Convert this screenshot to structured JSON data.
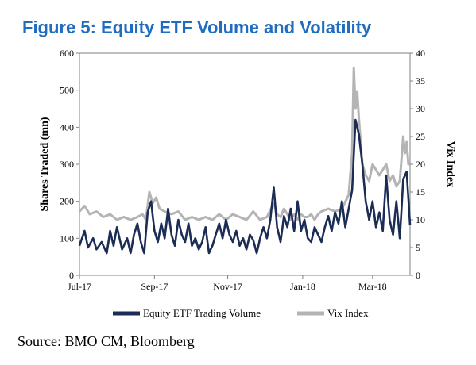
{
  "title": "Figure 5: Equity ETF Volume and Volatility",
  "source": "Source: BMO CM, Bloomberg",
  "chart_data": {
    "type": "line",
    "ylabel_left": "Shares Traded (mn)",
    "ylabel_right": "Vix Index",
    "ylim_left": [
      0,
      600
    ],
    "ylim_right": [
      0,
      40
    ],
    "yticks_left": [
      "0",
      "100",
      "200",
      "300",
      "400",
      "500",
      "600"
    ],
    "yticks_right": [
      "0",
      "5",
      "10",
      "15",
      "20",
      "25",
      "30",
      "35",
      "40"
    ],
    "xticks": [
      "Jul-17",
      "Sep-17",
      "Nov-17",
      "Jan-18",
      "Mar-18"
    ],
    "xtick_positions": [
      0,
      44,
      87,
      131,
      172
    ],
    "x_count": 195,
    "grid": false,
    "legend_position": "bottom",
    "series": [
      {
        "name": "Equity ETF Trading Volume",
        "axis": "left",
        "color": "#1c2d55",
        "knots": [
          [
            0,
            80
          ],
          [
            3,
            120
          ],
          [
            5,
            75
          ],
          [
            8,
            100
          ],
          [
            10,
            70
          ],
          [
            13,
            90
          ],
          [
            16,
            60
          ],
          [
            18,
            120
          ],
          [
            20,
            80
          ],
          [
            22,
            130
          ],
          [
            25,
            70
          ],
          [
            28,
            100
          ],
          [
            30,
            60
          ],
          [
            32,
            110
          ],
          [
            34,
            140
          ],
          [
            36,
            90
          ],
          [
            38,
            60
          ],
          [
            40,
            170
          ],
          [
            42,
            200
          ],
          [
            44,
            120
          ],
          [
            46,
            90
          ],
          [
            48,
            140
          ],
          [
            50,
            100
          ],
          [
            52,
            180
          ],
          [
            54,
            110
          ],
          [
            56,
            80
          ],
          [
            58,
            150
          ],
          [
            60,
            110
          ],
          [
            62,
            90
          ],
          [
            64,
            140
          ],
          [
            66,
            80
          ],
          [
            68,
            100
          ],
          [
            70,
            70
          ],
          [
            72,
            90
          ],
          [
            74,
            130
          ],
          [
            76,
            60
          ],
          [
            78,
            80
          ],
          [
            80,
            110
          ],
          [
            82,
            140
          ],
          [
            84,
            100
          ],
          [
            86,
            150
          ],
          [
            88,
            110
          ],
          [
            90,
            90
          ],
          [
            92,
            120
          ],
          [
            94,
            80
          ],
          [
            96,
            100
          ],
          [
            98,
            70
          ],
          [
            100,
            110
          ],
          [
            102,
            95
          ],
          [
            104,
            60
          ],
          [
            106,
            100
          ],
          [
            108,
            130
          ],
          [
            110,
            100
          ],
          [
            112,
            150
          ],
          [
            114,
            237
          ],
          [
            116,
            130
          ],
          [
            118,
            90
          ],
          [
            120,
            160
          ],
          [
            122,
            130
          ],
          [
            124,
            180
          ],
          [
            126,
            120
          ],
          [
            128,
            200
          ],
          [
            130,
            120
          ],
          [
            132,
            150
          ],
          [
            134,
            100
          ],
          [
            136,
            90
          ],
          [
            138,
            130
          ],
          [
            140,
            110
          ],
          [
            142,
            90
          ],
          [
            144,
            130
          ],
          [
            146,
            160
          ],
          [
            148,
            120
          ],
          [
            150,
            170
          ],
          [
            152,
            140
          ],
          [
            154,
            200
          ],
          [
            156,
            130
          ],
          [
            158,
            180
          ],
          [
            160,
            230
          ],
          [
            162,
            420
          ],
          [
            164,
            380
          ],
          [
            166,
            300
          ],
          [
            168,
            200
          ],
          [
            170,
            150
          ],
          [
            172,
            200
          ],
          [
            174,
            130
          ],
          [
            176,
            170
          ],
          [
            178,
            120
          ],
          [
            180,
            270
          ],
          [
            182,
            150
          ],
          [
            184,
            110
          ],
          [
            186,
            200
          ],
          [
            188,
            100
          ],
          [
            190,
            260
          ],
          [
            192,
            280
          ],
          [
            194,
            135
          ]
        ]
      },
      {
        "name": "Vix Index",
        "axis": "right",
        "color": "#b4b4b4",
        "knots": [
          [
            0,
            11.5
          ],
          [
            3,
            12.5
          ],
          [
            6,
            11
          ],
          [
            10,
            11.5
          ],
          [
            14,
            10.5
          ],
          [
            18,
            11
          ],
          [
            22,
            10
          ],
          [
            26,
            10.5
          ],
          [
            30,
            10
          ],
          [
            34,
            10.5
          ],
          [
            37,
            11
          ],
          [
            39,
            10
          ],
          [
            41,
            15
          ],
          [
            43,
            13
          ],
          [
            45,
            14
          ],
          [
            47,
            12
          ],
          [
            50,
            11.5
          ],
          [
            54,
            11
          ],
          [
            58,
            11.5
          ],
          [
            62,
            10
          ],
          [
            66,
            10.5
          ],
          [
            70,
            10
          ],
          [
            74,
            10.5
          ],
          [
            78,
            10
          ],
          [
            82,
            11
          ],
          [
            86,
            10
          ],
          [
            90,
            11
          ],
          [
            94,
            10.5
          ],
          [
            98,
            10
          ],
          [
            102,
            11.5
          ],
          [
            106,
            10
          ],
          [
            110,
            10.5
          ],
          [
            114,
            13
          ],
          [
            116,
            11
          ],
          [
            118,
            10.5
          ],
          [
            120,
            12
          ],
          [
            122,
            11
          ],
          [
            124,
            10
          ],
          [
            126,
            11
          ],
          [
            128,
            10
          ],
          [
            130,
            11
          ],
          [
            132,
            10.5
          ],
          [
            134,
            10.5
          ],
          [
            136,
            11
          ],
          [
            138,
            10
          ],
          [
            140,
            11
          ],
          [
            142,
            11.5
          ],
          [
            146,
            12
          ],
          [
            150,
            11.5
          ],
          [
            154,
            12
          ],
          [
            158,
            14.5
          ],
          [
            160,
            22
          ],
          [
            161,
            37.3
          ],
          [
            162,
            30
          ],
          [
            163,
            33
          ],
          [
            164,
            28
          ],
          [
            166,
            20
          ],
          [
            168,
            18
          ],
          [
            170,
            17
          ],
          [
            172,
            20
          ],
          [
            174,
            19
          ],
          [
            176,
            18
          ],
          [
            178,
            19
          ],
          [
            180,
            20
          ],
          [
            182,
            17
          ],
          [
            184,
            18
          ],
          [
            186,
            16
          ],
          [
            188,
            17
          ],
          [
            190,
            25
          ],
          [
            191,
            22
          ],
          [
            192,
            24
          ],
          [
            193,
            20
          ],
          [
            194,
            20
          ]
        ]
      }
    ]
  }
}
